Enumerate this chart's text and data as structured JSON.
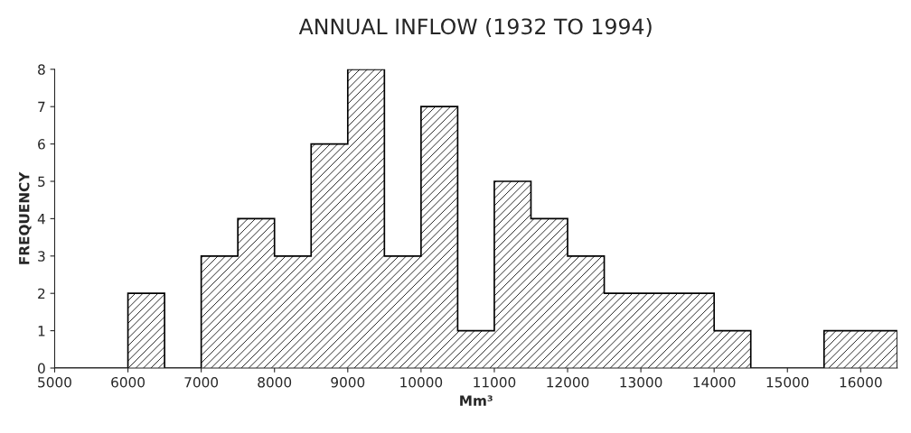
{
  "chart_data": {
    "type": "histogram",
    "title": "ANNUAL INFLOW (1932 TO 1994)",
    "xlabel": "Mm³",
    "ylabel": "FREQUENCY",
    "bins": [
      5000,
      5500,
      6000,
      6500,
      7000,
      7500,
      8000,
      8500,
      9000,
      9500,
      10000,
      10500,
      11000,
      11500,
      12000,
      12500,
      13000,
      13500,
      14000,
      14500,
      15000,
      15500,
      16000,
      16500
    ],
    "values": [
      0,
      0,
      2,
      0,
      3,
      4,
      3,
      6,
      8,
      3,
      7,
      1,
      5,
      4,
      3,
      2,
      2,
      2,
      1,
      0,
      0,
      1,
      1
    ],
    "color": "#000000",
    "xlim": [
      5000,
      16500
    ],
    "ylim": [
      0,
      8
    ],
    "xticks": [
      5000,
      6000,
      7000,
      8000,
      9000,
      10000,
      11000,
      12000,
      13000,
      14000,
      15000,
      16000
    ],
    "yticks": [
      0,
      1,
      2,
      3,
      4,
      5,
      6,
      7,
      8
    ],
    "grid": false
  }
}
